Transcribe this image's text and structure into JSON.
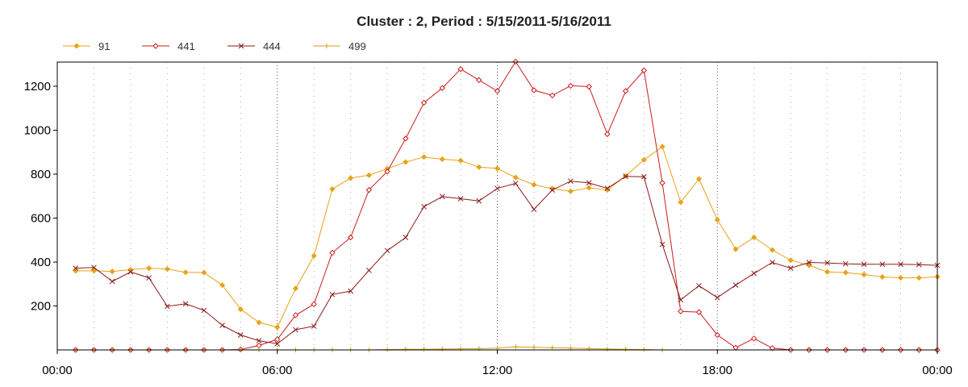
{
  "chart_data": {
    "type": "line",
    "title": "Cluster : 2, Period : 5/15/2011-5/16/2011",
    "xlabel": "",
    "ylabel": "",
    "x_ticks": [
      "00:00",
      "06:00",
      "12:00",
      "18:00",
      "00:00"
    ],
    "y_ticks": [
      "200",
      "400",
      "600",
      "800",
      "1000",
      "1200"
    ],
    "ylim": [
      0,
      1310
    ],
    "xlim_hours": [
      0,
      24
    ],
    "grid": "dotted-vertical",
    "legend_position": "top-left",
    "series": [
      {
        "name": "91",
        "color": "#e8a317",
        "marker": "diamond",
        "points": [
          [
            0.5,
            360
          ],
          [
            1,
            360
          ],
          [
            1.5,
            357
          ],
          [
            2,
            365
          ],
          [
            2.5,
            372
          ],
          [
            3,
            368
          ],
          [
            3.5,
            353
          ],
          [
            4,
            352
          ],
          [
            4.5,
            295
          ],
          [
            5,
            185
          ],
          [
            5.5,
            125
          ],
          [
            6,
            103
          ],
          [
            6.5,
            280
          ],
          [
            7,
            428
          ],
          [
            7.5,
            732
          ],
          [
            8,
            782
          ],
          [
            8.5,
            795
          ],
          [
            9,
            825
          ],
          [
            9.5,
            855
          ],
          [
            10,
            878
          ],
          [
            10.5,
            868
          ],
          [
            11,
            862
          ],
          [
            11.5,
            832
          ],
          [
            12,
            826
          ],
          [
            12.5,
            785
          ],
          [
            13,
            752
          ],
          [
            13.5,
            734
          ],
          [
            14,
            722
          ],
          [
            14.5,
            738
          ],
          [
            15,
            728
          ],
          [
            15.5,
            792
          ],
          [
            16,
            865
          ],
          [
            16.5,
            925
          ],
          [
            17,
            672
          ],
          [
            17.5,
            778
          ],
          [
            18,
            592
          ],
          [
            18.5,
            458
          ],
          [
            19,
            512
          ],
          [
            19.5,
            455
          ],
          [
            20,
            408
          ],
          [
            20.5,
            385
          ],
          [
            21,
            355
          ],
          [
            21.5,
            352
          ],
          [
            22,
            343
          ],
          [
            22.5,
            332
          ],
          [
            23,
            328
          ],
          [
            23.5,
            328
          ],
          [
            24,
            333
          ]
        ]
      },
      {
        "name": "441",
        "color": "#cc1a1a",
        "marker": "diamond-open",
        "points": [
          [
            0.5,
            0
          ],
          [
            1,
            0
          ],
          [
            1.5,
            0
          ],
          [
            2,
            0
          ],
          [
            2.5,
            0
          ],
          [
            3,
            0
          ],
          [
            3.5,
            0
          ],
          [
            4,
            0
          ],
          [
            4.5,
            0
          ],
          [
            5,
            2
          ],
          [
            5.5,
            20
          ],
          [
            6,
            48
          ],
          [
            6.5,
            158
          ],
          [
            7,
            208
          ],
          [
            7.5,
            442
          ],
          [
            8,
            512
          ],
          [
            8.5,
            728
          ],
          [
            9,
            812
          ],
          [
            9.5,
            962
          ],
          [
            10,
            1125
          ],
          [
            10.5,
            1192
          ],
          [
            11,
            1278
          ],
          [
            11.5,
            1228
          ],
          [
            12,
            1178
          ],
          [
            12.5,
            1312
          ],
          [
            13,
            1182
          ],
          [
            13.5,
            1158
          ],
          [
            14,
            1202
          ],
          [
            14.5,
            1198
          ],
          [
            15,
            982
          ],
          [
            15.5,
            1178
          ],
          [
            16,
            1272
          ],
          [
            16.5,
            760
          ],
          [
            17,
            175
          ],
          [
            17.5,
            172
          ],
          [
            18,
            68
          ],
          [
            18.5,
            10
          ],
          [
            19,
            52
          ],
          [
            19.5,
            8
          ],
          [
            20,
            0
          ],
          [
            20.5,
            0
          ],
          [
            21,
            0
          ],
          [
            21.5,
            0
          ],
          [
            22,
            0
          ],
          [
            22.5,
            0
          ],
          [
            23,
            0
          ],
          [
            23.5,
            0
          ],
          [
            24,
            0
          ]
        ]
      },
      {
        "name": "444",
        "color": "#8b1a1a",
        "marker": "x",
        "points": [
          [
            0.5,
            372
          ],
          [
            1,
            375
          ],
          [
            1.5,
            312
          ],
          [
            2,
            355
          ],
          [
            2.5,
            328
          ],
          [
            3,
            198
          ],
          [
            3.5,
            210
          ],
          [
            4,
            180
          ],
          [
            4.5,
            112
          ],
          [
            5,
            68
          ],
          [
            5.5,
            42
          ],
          [
            6,
            28
          ],
          [
            6.5,
            92
          ],
          [
            7,
            108
          ],
          [
            7.5,
            252
          ],
          [
            8,
            268
          ],
          [
            8.5,
            362
          ],
          [
            9,
            452
          ],
          [
            9.5,
            512
          ],
          [
            10,
            652
          ],
          [
            10.5,
            698
          ],
          [
            11,
            688
          ],
          [
            11.5,
            678
          ],
          [
            12,
            735
          ],
          [
            12.5,
            758
          ],
          [
            13,
            640
          ],
          [
            13.5,
            728
          ],
          [
            14,
            768
          ],
          [
            14.5,
            760
          ],
          [
            15,
            735
          ],
          [
            15.5,
            790
          ],
          [
            16,
            788
          ],
          [
            16.5,
            480
          ],
          [
            17,
            228
          ],
          [
            17.5,
            292
          ],
          [
            18,
            238
          ],
          [
            18.5,
            295
          ],
          [
            19,
            348
          ],
          [
            19.5,
            398
          ],
          [
            20,
            372
          ],
          [
            20.5,
            398
          ],
          [
            21,
            396
          ],
          [
            21.5,
            392
          ],
          [
            22,
            390
          ],
          [
            22.5,
            390
          ],
          [
            23,
            390
          ],
          [
            23.5,
            388
          ],
          [
            24,
            385
          ]
        ]
      },
      {
        "name": "499",
        "color": "#d4a017",
        "marker": "plus",
        "points": [
          [
            0.5,
            0
          ],
          [
            1,
            0
          ],
          [
            1.5,
            0
          ],
          [
            2,
            0
          ],
          [
            2.5,
            0
          ],
          [
            3,
            0
          ],
          [
            3.5,
            0
          ],
          [
            4,
            0
          ],
          [
            4.5,
            0
          ],
          [
            5,
            0
          ],
          [
            5.5,
            0
          ],
          [
            6,
            0
          ],
          [
            6.5,
            0
          ],
          [
            7,
            0
          ],
          [
            7.5,
            0
          ],
          [
            8,
            0
          ],
          [
            8.5,
            0
          ],
          [
            9,
            2
          ],
          [
            9.5,
            3
          ],
          [
            10,
            3
          ],
          [
            10.5,
            4
          ],
          [
            11,
            5
          ],
          [
            11.5,
            6
          ],
          [
            12,
            8
          ],
          [
            12.5,
            14
          ],
          [
            13,
            12
          ],
          [
            13.5,
            10
          ],
          [
            14,
            8
          ],
          [
            14.5,
            6
          ],
          [
            15,
            4
          ],
          [
            15.5,
            3
          ],
          [
            16,
            2
          ],
          [
            16.5,
            0
          ]
        ]
      }
    ]
  }
}
